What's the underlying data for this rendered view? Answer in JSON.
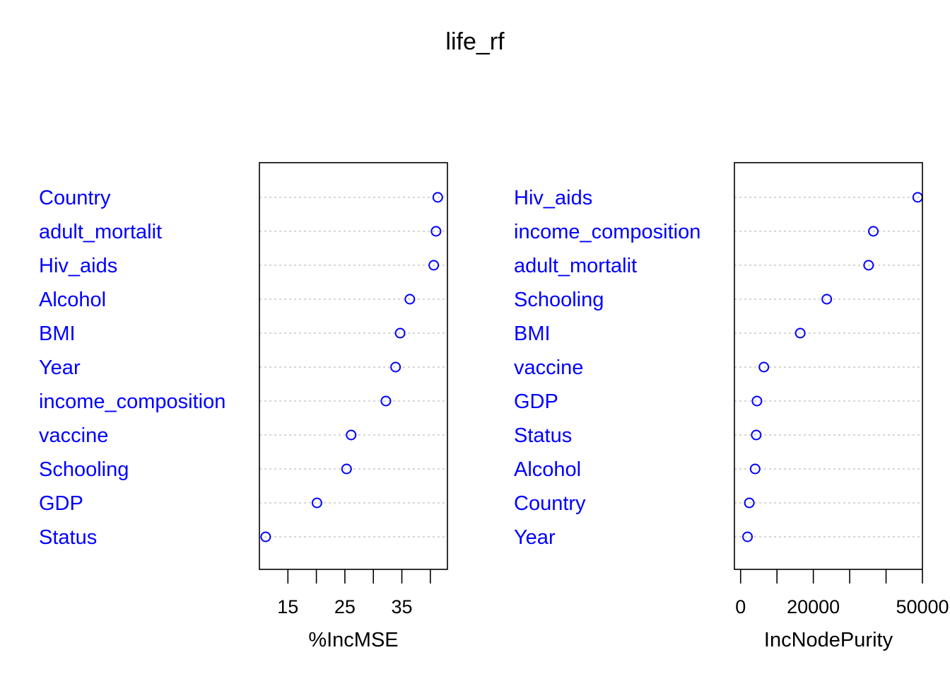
{
  "title": "life_rf",
  "colors": {
    "points": "#0000ff",
    "labels": "#0000ff",
    "guides": "#bebebe",
    "axis": "#000000"
  },
  "chart_data": [
    {
      "type": "scatter",
      "variant": "dotchart",
      "xlabel": "%IncMSE",
      "ylabel": "",
      "xlim": [
        10,
        43
      ],
      "xticks": [
        15,
        20,
        25,
        30,
        35,
        40
      ],
      "xtick_labels": [
        "15",
        "",
        "25",
        "",
        "35",
        ""
      ],
      "categories": [
        "Country",
        "adult_mortalit",
        "Hiv_aids",
        "Alcohol",
        "BMI",
        "Year",
        "income_composition",
        "vaccine",
        "Schooling",
        "GDP",
        "Status"
      ],
      "values": [
        41.3,
        41.0,
        40.6,
        36.4,
        34.7,
        33.9,
        32.2,
        26.1,
        25.3,
        20.1,
        11.1
      ],
      "grid": false
    },
    {
      "type": "scatter",
      "variant": "dotchart",
      "xlabel": "IncNodePurity",
      "ylabel": "",
      "xlim": [
        -1700,
        50000
      ],
      "xticks": [
        0,
        10000,
        20000,
        30000,
        40000,
        50000
      ],
      "xtick_labels": [
        "0",
        "",
        "20000",
        "",
        "",
        "50000"
      ],
      "categories": [
        "Hiv_aids",
        "income_composition",
        "adult_mortalit",
        "Schooling",
        "BMI",
        "vaccine",
        "GDP",
        "Status",
        "Alcohol",
        "Country",
        "Year"
      ],
      "values": [
        48700,
        36500,
        35200,
        23700,
        16400,
        6400,
        4500,
        4300,
        4000,
        2400,
        1900
      ],
      "grid": false
    }
  ]
}
